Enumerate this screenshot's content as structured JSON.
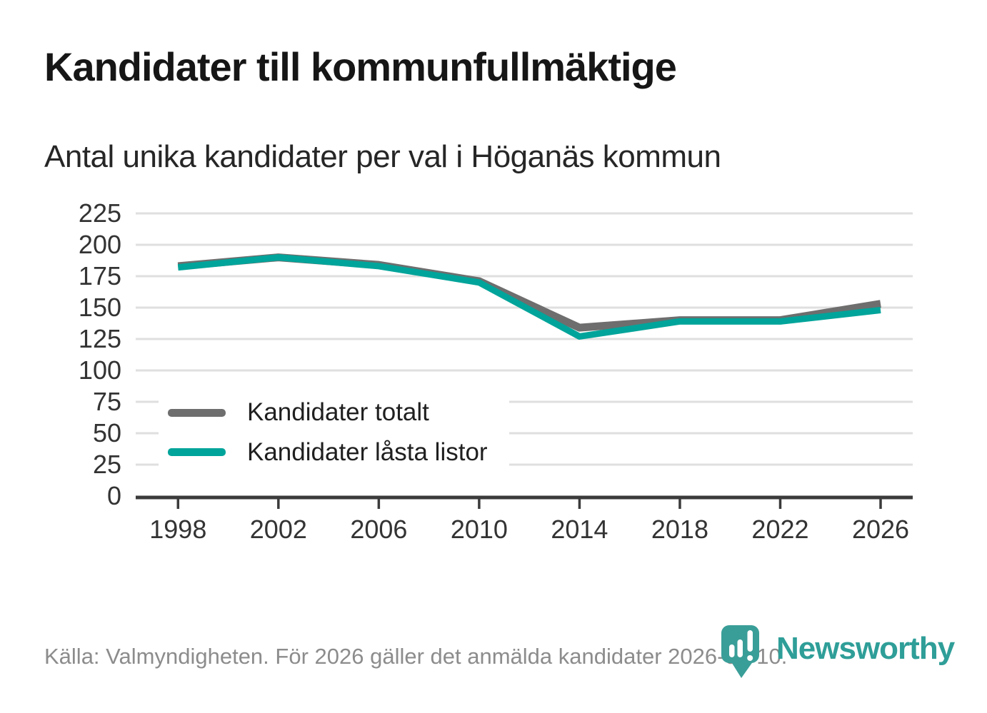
{
  "header": {
    "title": "Kandidater till kommunfullmäktige",
    "subtitle": "Antal unika kandidater per val i Höganäs kommun"
  },
  "chart_data": {
    "type": "line",
    "title": "Kandidater till kommunfullmäktige",
    "subtitle": "Antal unika kandidater per val i Höganäs kommun",
    "x": [
      1998,
      2002,
      2006,
      2010,
      2014,
      2018,
      2022,
      2026
    ],
    "series": [
      {
        "name": "Kandidater totalt",
        "color": "#6e6e6e",
        "values": [
          183,
          190,
          184,
          171,
          134,
          140,
          140,
          153
        ]
      },
      {
        "name": "Kandidater låsta listor",
        "color": "#00a49a",
        "values": [
          182,
          190,
          183,
          170,
          127,
          139,
          139,
          148
        ]
      }
    ],
    "xlabel": "",
    "ylabel": "",
    "yticks": [
      0,
      25,
      50,
      75,
      100,
      125,
      150,
      175,
      200,
      225
    ],
    "ylim": [
      0,
      235
    ],
    "grid": "horizontal",
    "grid_color": "#dfdfdf",
    "axis_color": "#3b3b3b",
    "legend_position": "inside-bottom-left"
  },
  "footer": {
    "source": "Källa: Valmyndigheten. För 2026 gäller det anmälda kandidater 2026-04-10."
  },
  "logo": {
    "brand": "Newsworthy",
    "color": "#2f9e98",
    "pin_color": "#3a9e98"
  }
}
